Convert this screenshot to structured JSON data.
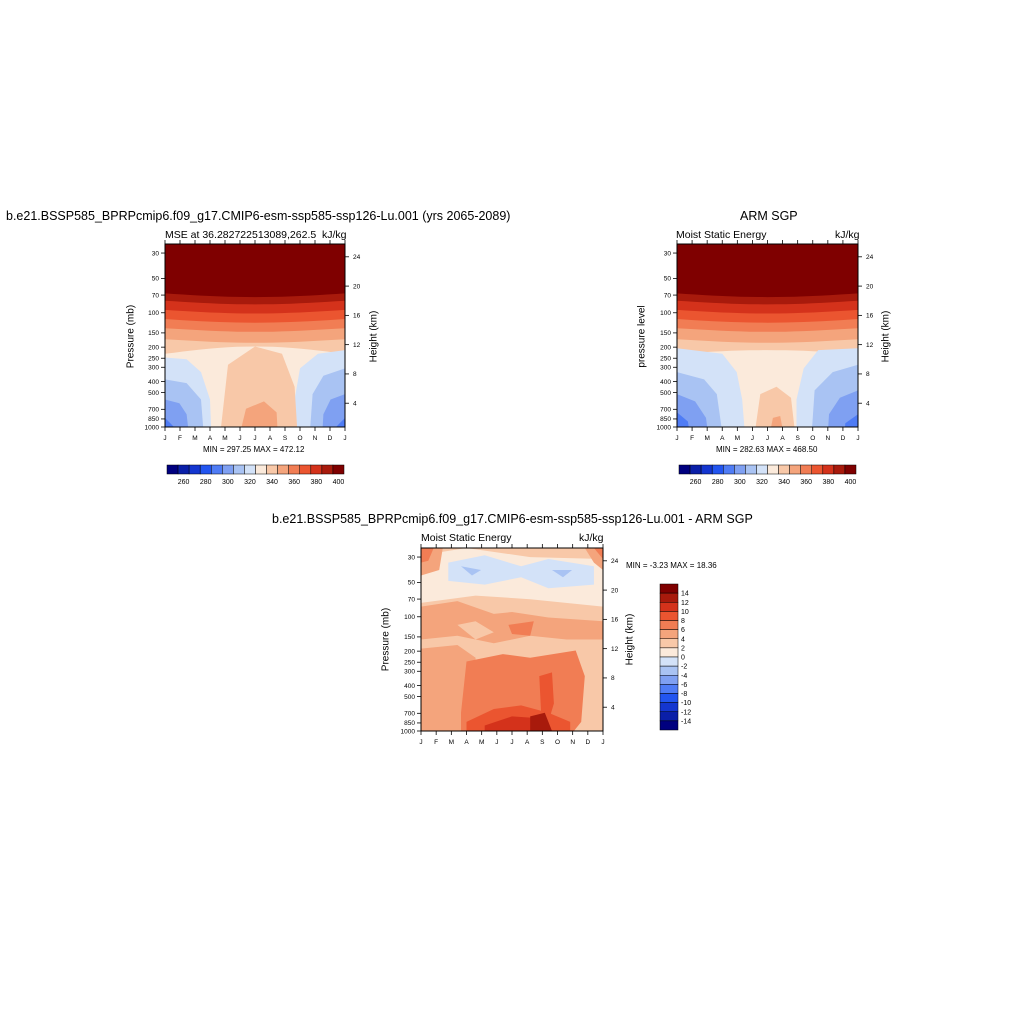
{
  "panels": [
    {
      "id": "model",
      "title": "b.e21.BSSP585_BPRPcmip6.f09_g17.CMIP6-esm-ssp585-ssp126-Lu.001 (yrs 2065-2089)",
      "left_string": "MSE at 36.282722513089,262.5",
      "right_string": "kJ/kg",
      "ylabel": "Pressure (mb)",
      "ylabel_right": "Height (km)",
      "minmax": "MIN = 297.25 MAX = 472.12"
    },
    {
      "id": "obs",
      "title": "ARM SGP",
      "left_string": "Moist Static Energy",
      "right_string": "kJ/kg",
      "ylabel": "pressure level",
      "ylabel_right": "Height (km)",
      "minmax": "MIN = 282.63 MAX = 468.50"
    },
    {
      "id": "diff",
      "title": "b.e21.BSSP585_BPRPcmip6.f09_g17.CMIP6-esm-ssp585-ssp126-Lu.001 - ARM SGP",
      "left_string": "Moist Static Energy",
      "right_string": "kJ/kg",
      "ylabel": "Pressure (mb)",
      "ylabel_right": "Height (km)",
      "minmax": "MIN =  -3.23 MAX =  18.36"
    }
  ],
  "colors": {
    "mse_levels": [
      "#00007f",
      "#0a1fa8",
      "#1436d0",
      "#2255f0",
      "#4f7cf5",
      "#7fa0f2",
      "#a9c3f3",
      "#d3e2f8",
      "#fbeadb",
      "#f8c8a8",
      "#f4a47c",
      "#f17d54",
      "#eb5530",
      "#d4321b",
      "#a81a0c",
      "#7f0000"
    ],
    "diff_levels": [
      "#00007f",
      "#0a1fa8",
      "#1436d0",
      "#2255f0",
      "#4f7cf5",
      "#7fa0f2",
      "#a9c3f3",
      "#d3e2f8",
      "#fbeadb",
      "#f8c8a8",
      "#f4a47c",
      "#f17d54",
      "#eb5530",
      "#d4321b",
      "#a81a0c",
      "#7f0000"
    ]
  },
  "chart_data": [
    {
      "type": "heatmap",
      "title": "b.e21.BSSP585_BPRPcmip6.f09_g17.CMIP6-esm-ssp585-ssp126-Lu.001 (yrs 2065-2089)",
      "ylabel": "Pressure (mb)",
      "ylabel_right": "Height (km)",
      "x_ticks": [
        "J",
        "F",
        "M",
        "A",
        "M",
        "J",
        "J",
        "A",
        "S",
        "O",
        "N",
        "D",
        "J"
      ],
      "y_ticks": [
        "30",
        "50",
        "70",
        "100",
        "150",
        "200",
        "250",
        "300",
        "400",
        "500",
        "700",
        "850",
        "1000"
      ],
      "y_right_ticks": [
        "24",
        "20",
        "16",
        "12",
        "8",
        "4"
      ],
      "colorbar_labels": [
        "260",
        "280",
        "300",
        "320",
        "340",
        "360",
        "380",
        "400"
      ],
      "min": 297.25,
      "max": 472.12,
      "units": "kJ/kg"
    },
    {
      "type": "heatmap",
      "title": "ARM SGP",
      "ylabel": "pressure level",
      "ylabel_right": "Height (km)",
      "x_ticks": [
        "J",
        "F",
        "M",
        "A",
        "M",
        "J",
        "J",
        "A",
        "S",
        "O",
        "N",
        "D",
        "J"
      ],
      "y_ticks": [
        "30",
        "50",
        "70",
        "100",
        "150",
        "200",
        "250",
        "300",
        "400",
        "500",
        "700",
        "850",
        "1000"
      ],
      "y_right_ticks": [
        "24",
        "20",
        "16",
        "12",
        "8",
        "4"
      ],
      "colorbar_labels": [
        "260",
        "280",
        "300",
        "320",
        "340",
        "360",
        "380",
        "400"
      ],
      "min": 282.63,
      "max": 468.5,
      "units": "kJ/kg"
    },
    {
      "type": "heatmap",
      "title": "b.e21.BSSP585_BPRPcmip6.f09_g17.CMIP6-esm-ssp585-ssp126-Lu.001 - ARM SGP",
      "ylabel": "Pressure (mb)",
      "ylabel_right": "Height (km)",
      "x_ticks": [
        "J",
        "F",
        "M",
        "A",
        "M",
        "J",
        "J",
        "A",
        "S",
        "O",
        "N",
        "D",
        "J"
      ],
      "y_ticks": [
        "30",
        "50",
        "70",
        "100",
        "150",
        "200",
        "250",
        "300",
        "400",
        "500",
        "700",
        "850",
        "1000"
      ],
      "y_right_ticks": [
        "24",
        "20",
        "16",
        "12",
        "8",
        "4"
      ],
      "colorbar_labels": [
        "14",
        "12",
        "10",
        "8",
        "6",
        "4",
        "2",
        "0",
        "-2",
        "-4",
        "-6",
        "-8",
        "-10",
        "-12",
        "-14"
      ],
      "min": -3.23,
      "max": 18.36,
      "units": "kJ/kg"
    }
  ]
}
